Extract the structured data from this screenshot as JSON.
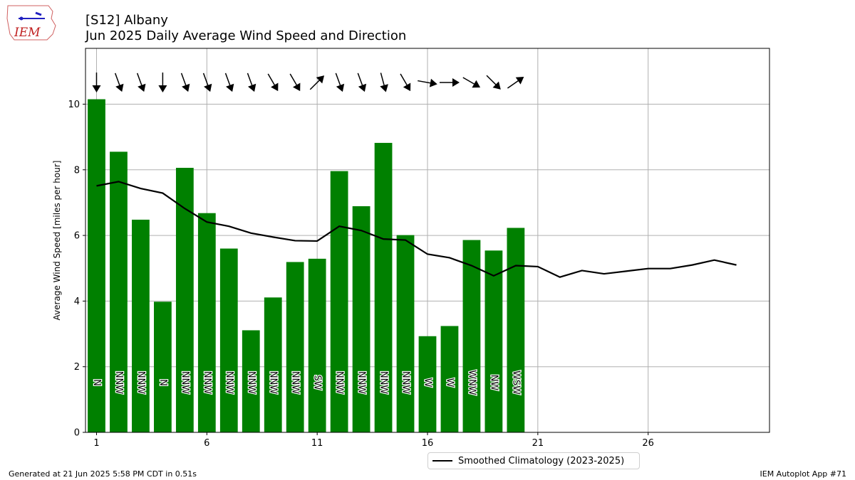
{
  "header": {
    "title_line1": "[S12] Albany",
    "title_line2": "Jun 2025 Daily Average Wind Speed and Direction",
    "logo_text": "IEM"
  },
  "footer": {
    "left": "Generated at 21 Jun 2025 5:58 PM CDT in 0.51s",
    "right": "IEM Autoplot App #71"
  },
  "legend": {
    "label": "Smoothed Climatology (2023-2025)"
  },
  "colors": {
    "bar": "#008000",
    "climatology": "#000000",
    "arrow": "#000000",
    "grid": "#b0b0b0"
  },
  "chart_data": {
    "type": "bar",
    "ylabel": "Average Wind Speed [miles per hour]",
    "xlabel": "",
    "ylim": [
      0,
      11.7
    ],
    "xlim": [
      0.5,
      31.5
    ],
    "xticks": [
      1,
      6,
      11,
      16,
      21,
      26
    ],
    "yticks": [
      0,
      2,
      4,
      6,
      8,
      10
    ],
    "grid": true,
    "legend_position": "bottom-center",
    "days": [
      1,
      2,
      3,
      4,
      5,
      6,
      7,
      8,
      9,
      10,
      11,
      12,
      13,
      14,
      15,
      16,
      17,
      18,
      19,
      20
    ],
    "speed": [
      10.15,
      8.55,
      6.48,
      3.98,
      8.06,
      6.68,
      5.6,
      3.11,
      4.11,
      5.19,
      5.29,
      7.96,
      6.89,
      8.82,
      6.01,
      2.93,
      3.24,
      5.86,
      5.54,
      6.23
    ],
    "direction_label": [
      "N",
      "NNW",
      "NNW",
      "N",
      "NNW",
      "NNW",
      "NNW",
      "NNW",
      "NNW",
      "NNW",
      "SW",
      "NNW",
      "NNW",
      "NNW",
      "NNW",
      "W",
      "W",
      "WNW",
      "NW",
      "WSW"
    ],
    "direction_deg": [
      0,
      340,
      340,
      0,
      340,
      340,
      340,
      340,
      330,
      330,
      225,
      340,
      340,
      345,
      330,
      280,
      270,
      300,
      315,
      235
    ],
    "climatology": {
      "name": "Smoothed Climatology (2023-2025)",
      "x": [
        1,
        2,
        3,
        4,
        5,
        6,
        7,
        8,
        9,
        10,
        11,
        12,
        13,
        14,
        15,
        16,
        17,
        18,
        19,
        20,
        21,
        22,
        23,
        24,
        25,
        26,
        27,
        28,
        29,
        30
      ],
      "y": [
        7.51,
        7.64,
        7.43,
        7.29,
        6.82,
        6.41,
        6.28,
        6.07,
        5.95,
        5.84,
        5.83,
        6.28,
        6.15,
        5.89,
        5.86,
        5.43,
        5.32,
        5.08,
        4.77,
        5.08,
        5.05,
        4.73,
        4.93,
        4.83,
        4.91,
        4.99,
        4.99,
        5.1,
        5.25,
        5.1
      ]
    }
  }
}
